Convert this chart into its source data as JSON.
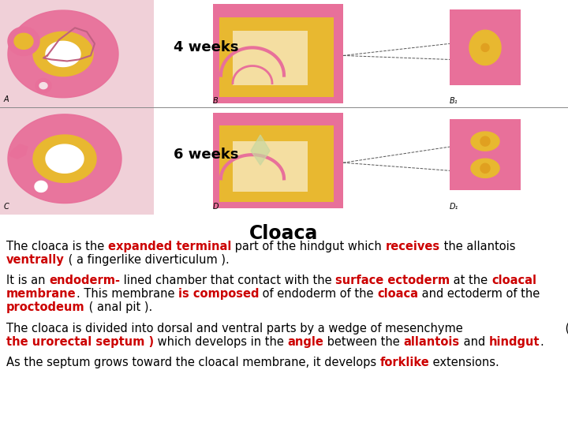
{
  "bg_color": "#ffffff",
  "title": "Cloaca",
  "title_fontsize": 17,
  "label_4weeks": "4 weeks",
  "label_6weeks": "6 weeks",
  "label_fontsize": 13,
  "text_fontsize": 10.5,
  "image_bg": "#c8b89a",
  "pink": "#e8709a",
  "yellow": "#e8b830",
  "light_pink_bg": "#f0d0d8",
  "text_rows": [
    [
      {
        "text": "The cloaca is the ",
        "color": "#000000",
        "bold": false
      },
      {
        "text": "expanded terminal",
        "color": "#cc0000",
        "bold": true
      },
      {
        "text": " part of the hindgut which ",
        "color": "#000000",
        "bold": false
      },
      {
        "text": "receives",
        "color": "#cc0000",
        "bold": true
      },
      {
        "text": " the allantois",
        "color": "#000000",
        "bold": false
      }
    ],
    [
      {
        "text": "ventrally",
        "color": "#cc0000",
        "bold": true
      },
      {
        "text": " ( a fingerlike diverticulum ).",
        "color": "#000000",
        "bold": false
      }
    ],
    [],
    [
      {
        "text": "It is an ",
        "color": "#000000",
        "bold": false
      },
      {
        "text": "endoderm-",
        "color": "#cc0000",
        "bold": true
      },
      {
        "text": " lined chamber that contact with the ",
        "color": "#000000",
        "bold": false
      },
      {
        "text": "surface ectoderm",
        "color": "#cc0000",
        "bold": true
      },
      {
        "text": " at the ",
        "color": "#000000",
        "bold": false
      },
      {
        "text": "cloacal",
        "color": "#cc0000",
        "bold": true
      }
    ],
    [
      {
        "text": "membrane",
        "color": "#cc0000",
        "bold": true
      },
      {
        "text": ". This membrane ",
        "color": "#000000",
        "bold": false
      },
      {
        "text": "is composed",
        "color": "#cc0000",
        "bold": true
      },
      {
        "text": " of endoderm of the ",
        "color": "#000000",
        "bold": false
      },
      {
        "text": "cloaca",
        "color": "#cc0000",
        "bold": true
      },
      {
        "text": " and ectoderm of the",
        "color": "#000000",
        "bold": false
      }
    ],
    [
      {
        "text": "proctodeum",
        "color": "#cc0000",
        "bold": true
      },
      {
        "text": " ( anal pit ).",
        "color": "#000000",
        "bold": false
      }
    ],
    [],
    [
      {
        "text": "The cloaca is divided into dorsal and ventral parts by a wedge of mesenchyme",
        "color": "#000000",
        "bold": false
      },
      {
        "text": "                            (",
        "color": "#000000",
        "bold": false
      }
    ],
    [
      {
        "text": "the urorectal septum )",
        "color": "#cc0000",
        "bold": true
      },
      {
        "text": " which develops in the ",
        "color": "#000000",
        "bold": false
      },
      {
        "text": "angle",
        "color": "#cc0000",
        "bold": true
      },
      {
        "text": " between the ",
        "color": "#000000",
        "bold": false
      },
      {
        "text": "allantois",
        "color": "#cc0000",
        "bold": true
      },
      {
        "text": " and ",
        "color": "#000000",
        "bold": false
      },
      {
        "text": "hindgut",
        "color": "#cc0000",
        "bold": true
      },
      {
        "text": ".",
        "color": "#000000",
        "bold": false
      }
    ],
    [],
    [
      {
        "text": "As the septum grows toward the cloacal membrane, it develops ",
        "color": "#000000",
        "bold": false
      },
      {
        "text": "forklike",
        "color": "#cc0000",
        "bold": true
      },
      {
        "text": " extensions.",
        "color": "#000000",
        "bold": false
      }
    ]
  ]
}
